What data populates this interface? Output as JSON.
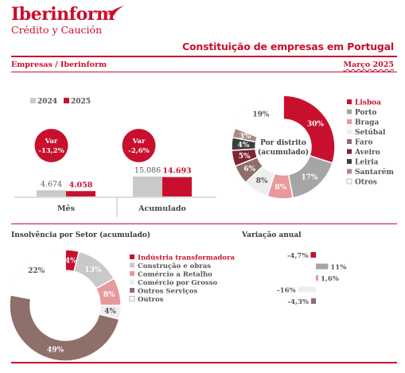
{
  "brand": {
    "name": "Iberinform",
    "tagline": "Crédito y Caución"
  },
  "header": {
    "title": "Constituição de empresas em Portugal",
    "section": "Empresas / Iberinform",
    "date": "Março 2025"
  },
  "colors": {
    "red": "#c8102e",
    "grey": "#a5a5a5",
    "lightgrey": "#c9c9c9",
    "pink": "#e8999c",
    "verylightgrey": "#eeeeee",
    "brown": "#8e6f69",
    "darkred": "#7c2631",
    "darkgrey": "#3e3e3e",
    "taupe": "#a88a84",
    "white": "#ffffff"
  },
  "chart_data": [
    {
      "type": "bar",
      "legend": [
        "2024",
        "2025"
      ],
      "categories": [
        "Mês",
        "Acumulado"
      ],
      "series": [
        {
          "name": "2024",
          "values": [
            4674,
            15086
          ],
          "labels": [
            "4.674",
            "15.086"
          ]
        },
        {
          "name": "2025",
          "values": [
            4058,
            14693
          ],
          "labels": [
            "4.058",
            "14.693"
          ]
        }
      ],
      "annotations": [
        {
          "title": "Var",
          "value": "-13,2%"
        },
        {
          "title": "Var",
          "value": "-2,6%"
        }
      ]
    },
    {
      "type": "pie",
      "title": "Por distrito (acumulado)",
      "title_lines": [
        "Por distrito",
        "(acumulado)"
      ],
      "slices": [
        {
          "name": "Lisboa",
          "value": 30,
          "label": "30%"
        },
        {
          "name": "Porto",
          "value": 17,
          "label": "17%"
        },
        {
          "name": "Braga",
          "value": 8,
          "label": "8%"
        },
        {
          "name": "Setúbal",
          "value": 8,
          "label": "8%"
        },
        {
          "name": "Faro",
          "value": 6,
          "label": "6%"
        },
        {
          "name": "Aveiro",
          "value": 5,
          "label": "5%"
        },
        {
          "name": "Leiria",
          "value": 4,
          "label": "4%"
        },
        {
          "name": "Santarém",
          "value": 3,
          "label": "3%"
        },
        {
          "name": "Otros",
          "value": 19,
          "label": "19%"
        }
      ]
    },
    {
      "type": "pie",
      "title": "Insolvência por Setor (acumulado)",
      "slices": [
        {
          "name": "Indústria transformadora",
          "value": 4,
          "label": "4%"
        },
        {
          "name": "Construção e obras",
          "value": 13,
          "label": "13%"
        },
        {
          "name": "Comércio a Retalho",
          "value": 8,
          "label": "8%"
        },
        {
          "name": "Comércio por Grosso",
          "value": 4,
          "label": "4%"
        },
        {
          "name": "Outros Serviços",
          "value": 49,
          "label": "49%"
        },
        {
          "name": "Outros",
          "value": 22,
          "label": "22%"
        }
      ]
    },
    {
      "type": "bar",
      "title": "Variação anual",
      "orientation": "horizontal",
      "categories": [
        "Indústria transformadora",
        "Construção e obras",
        "Comércio a Retalho",
        "Comércio por Grosso",
        "Outros Serviços"
      ],
      "values": [
        -4.7,
        11,
        1.6,
        -16,
        -4.3
      ],
      "labels": [
        "-4,7%",
        "11%",
        "1,6%",
        "-16%",
        "-4,3%"
      ]
    }
  ]
}
